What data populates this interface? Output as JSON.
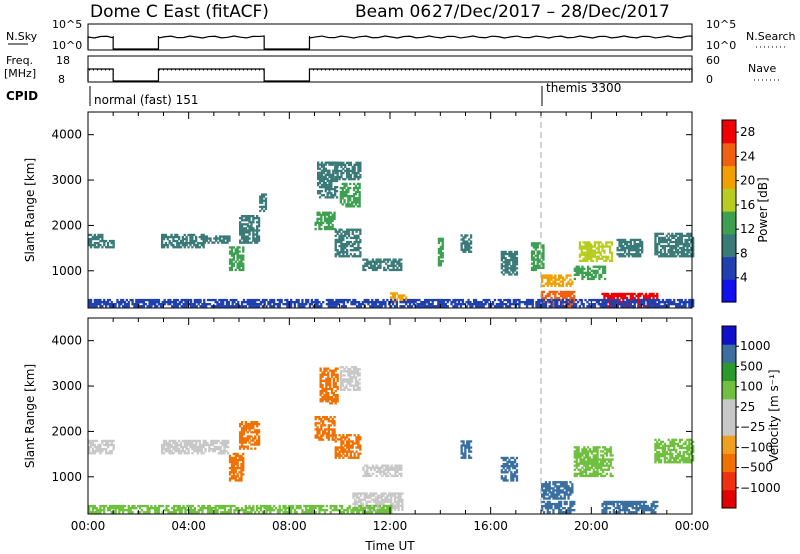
{
  "header": {
    "title": "Dome C East (fitACF)",
    "beam": "Beam 06",
    "dates": "27/Dec/2017 – 28/Dec/2017"
  },
  "summary": {
    "nsky_label": "N.Sky",
    "nsearch_label": "N.Search",
    "freq_label": "Freq.",
    "freq_unit": "[MHz]",
    "nave_label": "Nave",
    "cpid_label": "CPID",
    "nsky_ticks": [
      "10^5",
      "10^0"
    ],
    "nsearch_ticks": [
      "10^5",
      "10^0"
    ],
    "freq_ticks": [
      "18",
      "8"
    ],
    "nave_ticks": [
      "60",
      "0"
    ],
    "cpid_segments": [
      {
        "label": "normal (fast) 151",
        "start": 0.0
      },
      {
        "label": "themis 3300",
        "start": 18.0
      }
    ],
    "data_gaps": [
      [
        1.0,
        2.8
      ],
      [
        7.0,
        8.8
      ]
    ]
  },
  "colors": {
    "power": [
      "#1010ee",
      "#2040b0",
      "#3a7a78",
      "#3da050",
      "#b8cc20",
      "#f0a000",
      "#f06010",
      "#f00000"
    ],
    "velocity": [
      "#e00000",
      "#f03010",
      "#f07000",
      "#f0a020",
      "#c8c8c8",
      "#c8c8c8",
      "#70c040",
      "#2a9a2a",
      "#3a6fa0",
      "#1010cc"
    ]
  },
  "chart_data": [
    {
      "type": "heatmap",
      "title": "",
      "xlabel": "",
      "ylabel": "Slant Range [km]",
      "xlim": [
        0,
        24
      ],
      "ylim": [
        180,
        4500
      ],
      "yticks": [
        1000,
        2000,
        3000,
        4000
      ],
      "colorbar_label": "Power [dB]",
      "colorbar_ticks": [
        "4",
        "8",
        "12",
        "16",
        "20",
        "24",
        "28"
      ],
      "colorbar_range": [
        0,
        30
      ],
      "annotations": [
        {
          "x": 18.0,
          "style": "dashed"
        }
      ],
      "echo_regions": [
        {
          "t0": 0.0,
          "t1": 0.6,
          "r0": 1500,
          "r1": 1800,
          "value": 8
        },
        {
          "t0": 0.6,
          "t1": 1.0,
          "r0": 1500,
          "r1": 1650,
          "value": 8
        },
        {
          "t0": 2.9,
          "t1": 4.6,
          "r0": 1500,
          "r1": 1800,
          "value": 8
        },
        {
          "t0": 4.6,
          "t1": 5.6,
          "r0": 1600,
          "r1": 1750,
          "value": 8
        },
        {
          "t0": 5.6,
          "t1": 6.2,
          "r0": 1000,
          "r1": 1500,
          "value": 12
        },
        {
          "t0": 6.0,
          "t1": 6.8,
          "r0": 1600,
          "r1": 2200,
          "value": 8
        },
        {
          "t0": 6.8,
          "t1": 7.1,
          "r0": 2300,
          "r1": 2700,
          "value": 8
        },
        {
          "t0": 9.0,
          "t1": 9.8,
          "r0": 1900,
          "r1": 2300,
          "value": 12
        },
        {
          "t0": 9.1,
          "t1": 9.9,
          "r0": 2600,
          "r1": 3400,
          "value": 10
        },
        {
          "t0": 10.0,
          "t1": 10.8,
          "r0": 2400,
          "r1": 2900,
          "value": 12
        },
        {
          "t0": 9.8,
          "t1": 10.8,
          "r0": 3000,
          "r1": 3400,
          "value": 8
        },
        {
          "t0": 9.8,
          "t1": 10.8,
          "r0": 1300,
          "r1": 1900,
          "value": 8
        },
        {
          "t0": 10.9,
          "t1": 12.4,
          "r0": 1000,
          "r1": 1250,
          "value": 8
        },
        {
          "t0": 12.0,
          "t1": 12.6,
          "r0": 300,
          "r1": 500,
          "value": 22
        },
        {
          "t0": 13.9,
          "t1": 14.1,
          "r0": 1100,
          "r1": 1700,
          "value": 12
        },
        {
          "t0": 14.8,
          "t1": 15.2,
          "r0": 1400,
          "r1": 1800,
          "value": 8
        },
        {
          "t0": 16.4,
          "t1": 17.0,
          "r0": 900,
          "r1": 1400,
          "value": 8
        },
        {
          "t0": 17.6,
          "t1": 18.1,
          "r0": 1000,
          "r1": 1600,
          "value": 12
        },
        {
          "t0": 18.0,
          "t1": 19.2,
          "r0": 650,
          "r1": 900,
          "value": 22
        },
        {
          "t0": 18.0,
          "t1": 19.3,
          "r0": 200,
          "r1": 550,
          "value": 26
        },
        {
          "t0": 19.3,
          "t1": 20.5,
          "r0": 800,
          "r1": 1100,
          "value": 12
        },
        {
          "t0": 19.5,
          "t1": 20.8,
          "r0": 1200,
          "r1": 1650,
          "value": 16
        },
        {
          "t0": 20.4,
          "t1": 22.6,
          "r0": 200,
          "r1": 500,
          "value": 27
        },
        {
          "t0": 21.0,
          "t1": 22.0,
          "r0": 1300,
          "r1": 1700,
          "value": 10
        },
        {
          "t0": 22.5,
          "t1": 24.0,
          "r0": 1300,
          "r1": 1800,
          "value": 10
        },
        {
          "t0": 0.0,
          "t1": 24.0,
          "r0": 200,
          "r1": 380,
          "value": 6
        }
      ]
    },
    {
      "type": "heatmap",
      "title": "",
      "xlabel": "Time UT",
      "ylabel": "Slant Range [km]",
      "xlim": [
        0,
        24
      ],
      "ylim": [
        180,
        4500
      ],
      "xticks": [
        "00:00",
        "04:00",
        "08:00",
        "12:00",
        "16:00",
        "20:00",
        "00:00"
      ],
      "yticks": [
        1000,
        2000,
        3000,
        4000
      ],
      "colorbar_label": "Velocity [m s⁻¹]",
      "colorbar_ticks": [
        "1000",
        "500",
        "100",
        "25",
        "−25",
        "−100",
        "−500",
        "−1000"
      ],
      "annotations": [
        {
          "x": 18.0,
          "style": "dashed"
        }
      ],
      "echo_regions": [
        {
          "t0": 0.0,
          "t1": 1.0,
          "r0": 1500,
          "r1": 1800,
          "value": 0
        },
        {
          "t0": 2.9,
          "t1": 5.6,
          "r0": 1500,
          "r1": 1800,
          "value": 0
        },
        {
          "t0": 5.6,
          "t1": 6.2,
          "r0": 900,
          "r1": 1500,
          "value": -300
        },
        {
          "t0": 6.0,
          "t1": 6.8,
          "r0": 1600,
          "r1": 2200,
          "value": -120
        },
        {
          "t0": 9.0,
          "t1": 9.8,
          "r0": 1800,
          "r1": 2300,
          "value": -400
        },
        {
          "t0": 9.2,
          "t1": 9.9,
          "r0": 2600,
          "r1": 3400,
          "value": -200
        },
        {
          "t0": 10.0,
          "t1": 10.8,
          "r0": 2900,
          "r1": 3400,
          "value": 0
        },
        {
          "t0": 9.8,
          "t1": 10.8,
          "r0": 1400,
          "r1": 1900,
          "value": -150
        },
        {
          "t0": 10.9,
          "t1": 12.4,
          "r0": 1000,
          "r1": 1250,
          "value": 0
        },
        {
          "t0": 10.5,
          "t1": 12.5,
          "r0": 250,
          "r1": 650,
          "value": 0
        },
        {
          "t0": 14.8,
          "t1": 15.2,
          "r0": 1400,
          "r1": 1800,
          "value": 200
        },
        {
          "t0": 16.4,
          "t1": 17.0,
          "r0": 900,
          "r1": 1400,
          "value": 200
        },
        {
          "t0": 18.0,
          "t1": 19.2,
          "r0": 500,
          "r1": 900,
          "value": 200
        },
        {
          "t0": 18.0,
          "t1": 19.3,
          "r0": 200,
          "r1": 450,
          "value": 150
        },
        {
          "t0": 19.3,
          "t1": 20.8,
          "r0": 1000,
          "r1": 1650,
          "value": 60
        },
        {
          "t0": 20.4,
          "t1": 22.6,
          "r0": 200,
          "r1": 450,
          "value": 200
        },
        {
          "t0": 22.5,
          "t1": 24.0,
          "r0": 1300,
          "r1": 1800,
          "value": 60
        },
        {
          "t0": 0.0,
          "t1": 12.0,
          "r0": 200,
          "r1": 380,
          "value": 60
        }
      ]
    }
  ]
}
